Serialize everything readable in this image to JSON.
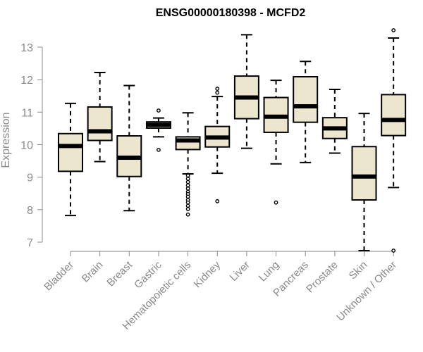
{
  "chart_data": {
    "type": "boxplot",
    "title": "ENSG00000180398 - MCFD2",
    "ylabel": "Expression",
    "ylim": [
      6.7,
      13.6
    ],
    "yticks": [
      7,
      8,
      9,
      10,
      11,
      12,
      13
    ],
    "categories": [
      "Bladder",
      "Brain",
      "Breast",
      "Gastric",
      "Hematopoietic cells",
      "Kidney",
      "Liver",
      "Lung",
      "Pancreas",
      "Prostate",
      "Skin",
      "Unknown / Other"
    ],
    "box_fill": "#ede6cf",
    "boxes": [
      {
        "whisker_low": 7.82,
        "q1": 9.18,
        "median": 9.96,
        "q3": 10.34,
        "whisker_high": 11.27,
        "outliers": []
      },
      {
        "whisker_low": 9.48,
        "q1": 10.13,
        "median": 10.41,
        "q3": 11.16,
        "whisker_high": 12.22,
        "outliers": []
      },
      {
        "whisker_low": 7.97,
        "q1": 9.02,
        "median": 9.6,
        "q3": 10.27,
        "whisker_high": 11.82,
        "outliers": []
      },
      {
        "whisker_low": 10.24,
        "q1": 10.51,
        "median": 10.61,
        "q3": 10.7,
        "whisker_high": 10.82,
        "outliers": [
          11.05,
          9.84
        ]
      },
      {
        "whisker_low": 9.1,
        "q1": 9.85,
        "median": 10.13,
        "q3": 10.24,
        "whisker_high": 10.98,
        "outliers": [
          9.05,
          8.95,
          8.85,
          8.75,
          8.65,
          8.55,
          8.48,
          8.4,
          8.3,
          8.22,
          8.12,
          8.02,
          7.85
        ]
      },
      {
        "whisker_low": 9.12,
        "q1": 9.93,
        "median": 10.22,
        "q3": 10.56,
        "whisker_high": 11.48,
        "outliers": [
          11.72,
          11.6,
          8.26
        ]
      },
      {
        "whisker_low": 9.89,
        "q1": 10.8,
        "median": 11.45,
        "q3": 12.11,
        "whisker_high": 13.38,
        "outliers": []
      },
      {
        "whisker_low": 9.41,
        "q1": 10.38,
        "median": 10.86,
        "q3": 11.45,
        "whisker_high": 11.98,
        "outliers": [
          8.22
        ]
      },
      {
        "whisker_low": 9.45,
        "q1": 10.69,
        "median": 11.18,
        "q3": 12.09,
        "whisker_high": 12.56,
        "outliers": []
      },
      {
        "whisker_low": 9.74,
        "q1": 10.19,
        "median": 10.5,
        "q3": 10.83,
        "whisker_high": 11.7,
        "outliers": []
      },
      {
        "whisker_low": 6.74,
        "q1": 8.3,
        "median": 9.02,
        "q3": 9.94,
        "whisker_high": 10.96,
        "outliers": []
      },
      {
        "whisker_low": 8.68,
        "q1": 10.28,
        "median": 10.76,
        "q3": 11.54,
        "whisker_high": 13.28,
        "outliers": [
          13.52,
          6.74
        ]
      }
    ]
  }
}
